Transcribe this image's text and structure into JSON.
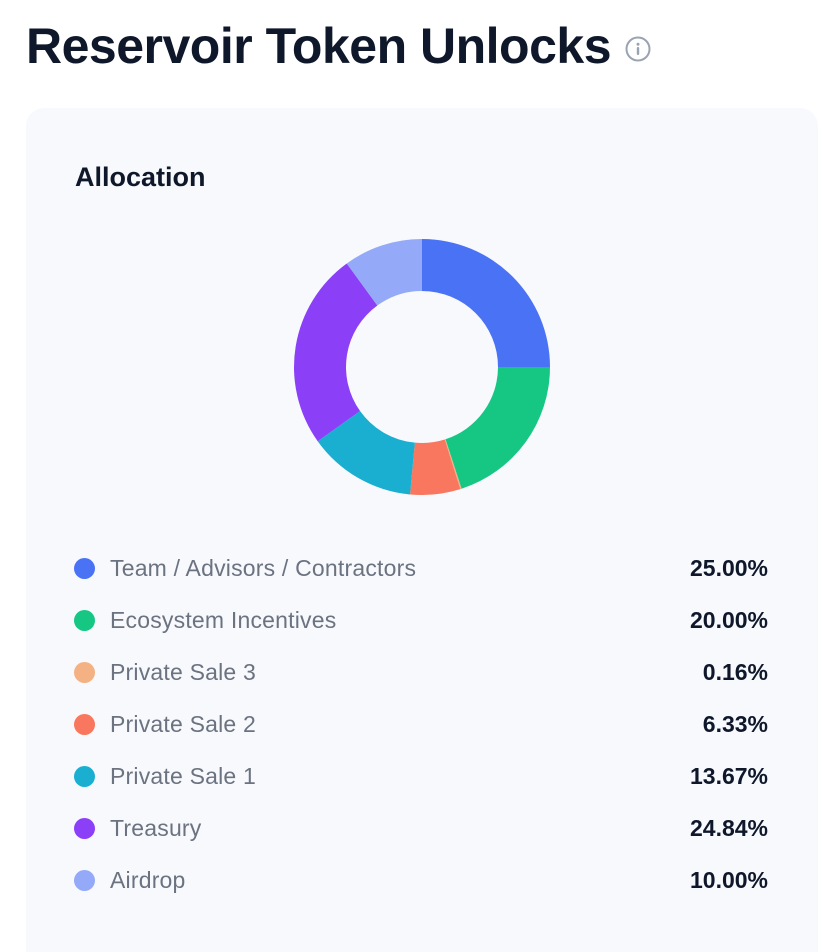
{
  "header": {
    "title": "Reservoir Token Unlocks",
    "info_icon": "info-circle-icon"
  },
  "card": {
    "title": "Allocation"
  },
  "chart_data": {
    "type": "pie",
    "donut": true,
    "title": "Allocation",
    "legend": "bottom",
    "slices": [
      {
        "label": "Team / Advisors / Contractors",
        "value": 25.0,
        "display": "25.00%",
        "color": "#4a72f5"
      },
      {
        "label": "Ecosystem Incentives",
        "value": 20.0,
        "display": "20.00%",
        "color": "#16c784"
      },
      {
        "label": "Private Sale 3",
        "value": 0.16,
        "display": "0.16%",
        "color": "#f4b183"
      },
      {
        "label": "Private Sale 2",
        "value": 6.33,
        "display": "6.33%",
        "color": "#f8775e"
      },
      {
        "label": "Private Sale 1",
        "value": 13.67,
        "display": "13.67%",
        "color": "#1aafd0"
      },
      {
        "label": "Treasury",
        "value": 24.84,
        "display": "24.84%",
        "color": "#8b3ff7"
      },
      {
        "label": "Airdrop",
        "value": 10.0,
        "display": "10.00%",
        "color": "#94a9f8"
      }
    ]
  }
}
